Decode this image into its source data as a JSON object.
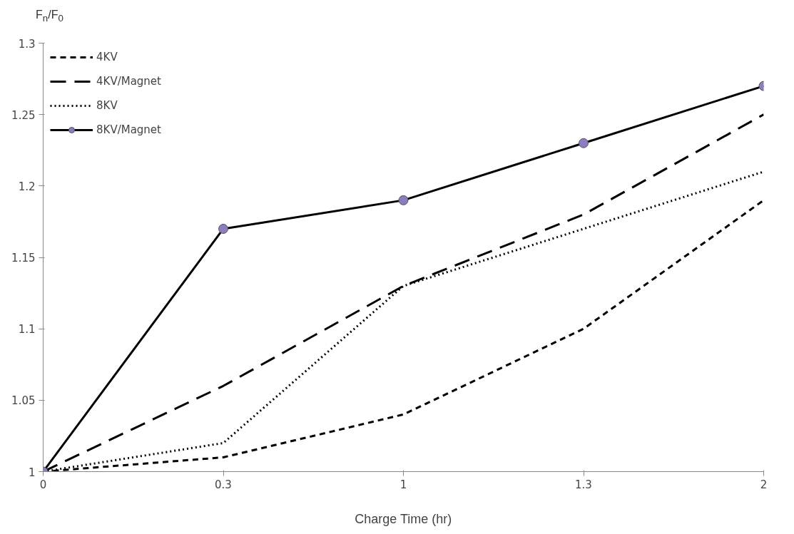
{
  "chart_data": {
    "type": "line",
    "xlabel": "Charge Time (hr)",
    "ylabel": "F$_{n}$/F$_{0}$",
    "categories": [
      "0",
      "0.3",
      "1",
      "1.3",
      "2"
    ],
    "ylim": [
      1,
      1.3
    ],
    "yticks": [
      1,
      {
        "value": 1.05,
        "label": "1.05"
      },
      {
        "value": 1.1,
        "label": "1.1"
      },
      {
        "value": 1.15,
        "label": "1.15"
      },
      {
        "value": 1.2,
        "label": "1.2"
      },
      {
        "value": 1.25,
        "label": "1.25"
      },
      {
        "value": 1.3,
        "label": "1.3"
      }
    ],
    "grid": false,
    "legend": "top left",
    "series": [
      {
        "name": "4KV",
        "color": "#000000",
        "line_style": "dashed",
        "marker": "none",
        "values": [
          1,
          1.01,
          1.04,
          1.1,
          1.19
        ]
      },
      {
        "name": "4KV/Magnet",
        "color": "#000000",
        "line_style": "longdash",
        "marker": "none",
        "values": [
          1,
          1.06,
          1.13,
          1.18,
          1.25
        ]
      },
      {
        "name": "8KV",
        "color": "#000000",
        "line_style": "dotted",
        "marker": "none",
        "values": [
          1,
          1.02,
          1.13,
          1.17,
          1.21
        ]
      },
      {
        "name": "8KV/Magnet",
        "color": "#000000",
        "line_style": "solid",
        "marker": "circle",
        "values": [
          1,
          1.17,
          1.19,
          1.23,
          1.27
        ]
      }
    ]
  }
}
